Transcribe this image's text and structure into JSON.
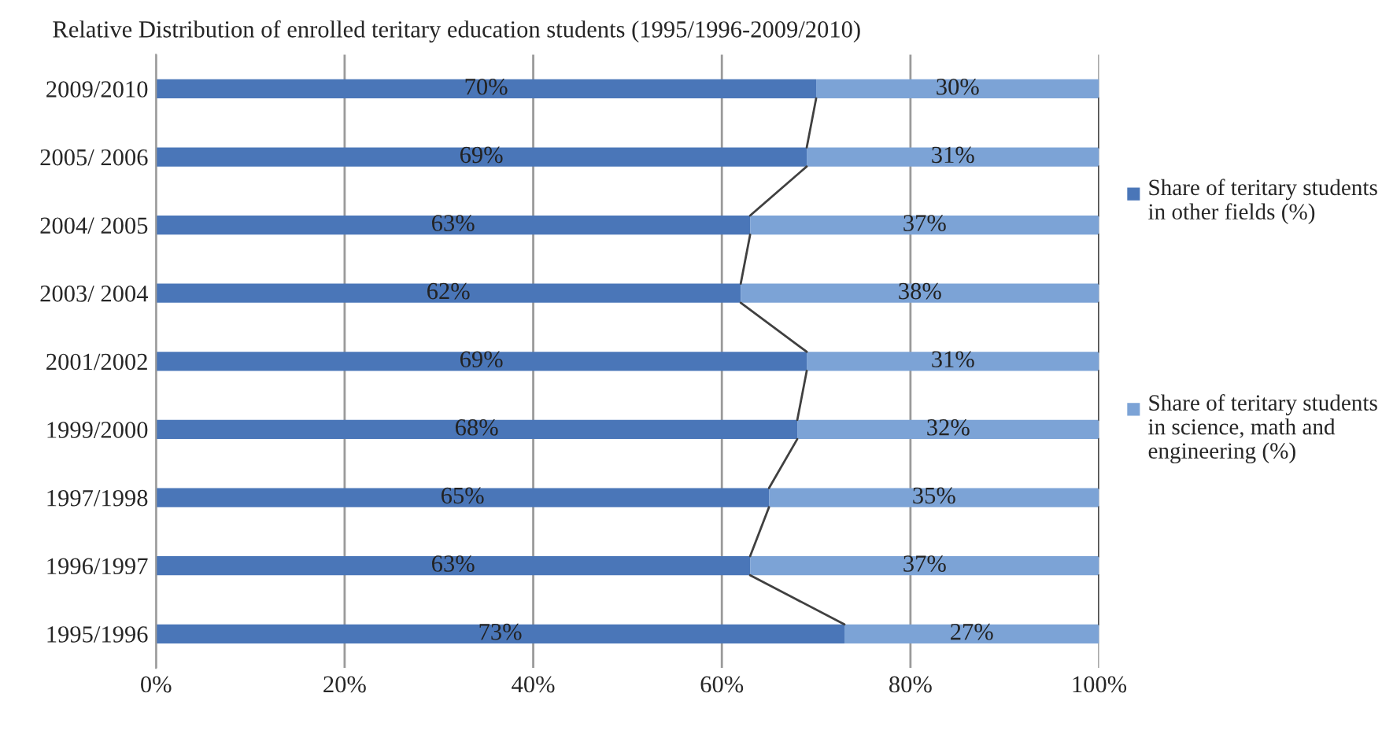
{
  "chart_data": {
    "type": "bar",
    "orientation": "horizontal",
    "stacked": true,
    "title": "Relative Distribution of enrolled teritary education students (1995/1996-2009/2010)",
    "categories": [
      "2009/2010",
      "2005/ 2006",
      "2004/ 2005",
      "2003/ 2004",
      "2001/2002",
      "1999/2000",
      "1997/1998",
      "1996/1997",
      "1995/1996"
    ],
    "series": [
      {
        "name": "Share of teritary students in other fields (%)",
        "color": "#4a76b8",
        "values": [
          70,
          69,
          63,
          62,
          69,
          68,
          65,
          63,
          73
        ],
        "value_labels": [
          "70%",
          "69%",
          "63%",
          "62%",
          "69%",
          "68%",
          "65%",
          "63%",
          "73%"
        ]
      },
      {
        "name": "Share of teritary students in science, math and engineering (%)",
        "color": "#7ca3d6",
        "values": [
          30,
          31,
          37,
          38,
          31,
          32,
          35,
          37,
          27
        ],
        "value_labels": [
          "30%",
          "31%",
          "37%",
          "38%",
          "31%",
          "32%",
          "35%",
          "37%",
          "27%"
        ]
      }
    ],
    "xlim": [
      0,
      100
    ],
    "xticks": [
      {
        "value": 0,
        "label": "0%"
      },
      {
        "value": 20,
        "label": "20%"
      },
      {
        "value": 40,
        "label": "40%"
      },
      {
        "value": 60,
        "label": "60%"
      },
      {
        "value": 80,
        "label": "80%"
      },
      {
        "value": 100,
        "label": "100%"
      }
    ],
    "grid": "x",
    "legend": "right"
  }
}
